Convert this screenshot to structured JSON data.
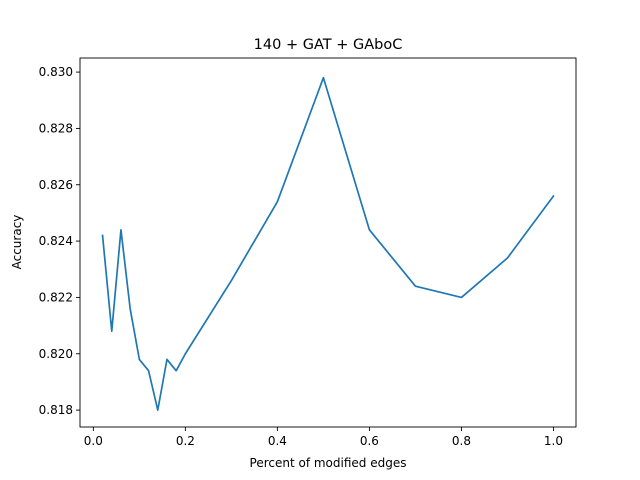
{
  "chart_data": {
    "type": "line",
    "title": "140 + GAT + GAboC",
    "xlabel": "Percent of modified edges",
    "ylabel": "Accuracy",
    "xlim": [
      -0.029,
      1.049
    ],
    "ylim": [
      0.8174,
      0.8305
    ],
    "xticks": [
      0.0,
      0.2,
      0.4,
      0.6,
      0.8,
      1.0
    ],
    "xtick_labels": [
      "0.0",
      "0.2",
      "0.4",
      "0.6",
      "0.8",
      "1.0"
    ],
    "yticks": [
      0.818,
      0.82,
      0.822,
      0.824,
      0.826,
      0.828,
      0.83
    ],
    "ytick_labels": [
      "0.818",
      "0.820",
      "0.822",
      "0.824",
      "0.826",
      "0.828",
      "0.830"
    ],
    "grid": false,
    "legend": "none",
    "series": [
      {
        "color": "#1f77b4",
        "x": [
          0.02,
          0.04,
          0.06,
          0.08,
          0.1,
          0.12,
          0.14,
          0.16,
          0.18,
          0.2,
          0.3,
          0.4,
          0.5,
          0.6,
          0.7,
          0.8,
          0.9,
          1.0
        ],
        "y": [
          0.8242,
          0.8208,
          0.8244,
          0.8216,
          0.8198,
          0.8194,
          0.818,
          0.8198,
          0.8194,
          0.82,
          0.8226,
          0.8254,
          0.8298,
          0.8244,
          0.8224,
          0.822,
          0.8234,
          0.8256
        ]
      }
    ]
  }
}
